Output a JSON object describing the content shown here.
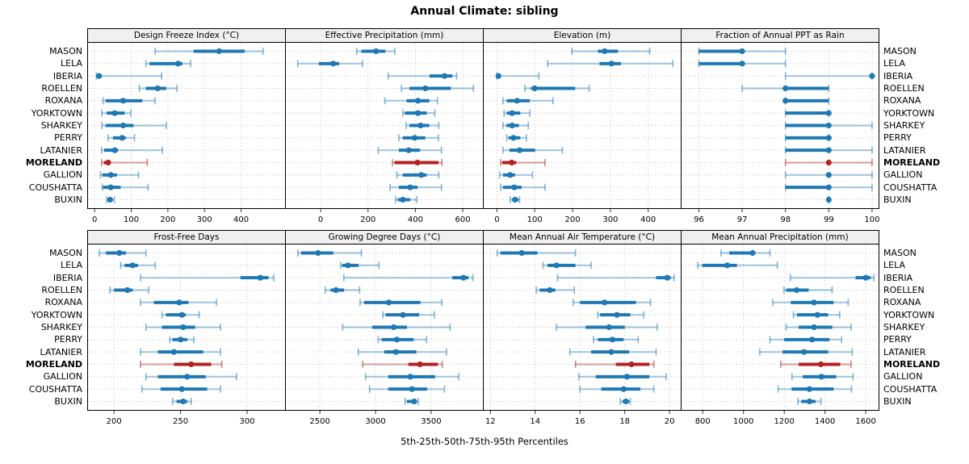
{
  "title": "Annual Climate: sibling",
  "footer": "5th-25th-50th-75th-95th Percentiles",
  "colors": {
    "series_blue": "#1F78B4",
    "highlight_red": "#B22222",
    "strip_bg": "#F0F0F0",
    "grid": "#C0C0C0",
    "border": "#000000",
    "tick": "#333333"
  },
  "chart_data": {
    "type": "dotplot-interval",
    "percentiles": [
      5,
      25,
      50,
      75,
      95
    ],
    "legend_note": "5th-25th-50th-75th-95th Percentiles",
    "rows": [
      "MASON",
      "LELA",
      "IBERIA",
      "ROELLEN",
      "ROXANA",
      "YORKTOWN",
      "SHARKEY",
      "PERRY",
      "LATANIER",
      "MORELAND",
      "GALLION",
      "COUSHATTA",
      "BUXIN"
    ],
    "highlight_row": "MORELAND",
    "grid_on": true,
    "panels": [
      {
        "title": "Design Freeze Index (°C)",
        "grid_row": 0,
        "grid_col": 0,
        "xlim": [
          -18,
          520
        ],
        "ticks": [
          0,
          100,
          200,
          300,
          400
        ],
        "series": [
          [
            165,
            270,
            340,
            410,
            460
          ],
          [
            140,
            150,
            228,
            240,
            262
          ],
          [
            5,
            8,
            12,
            20,
            183
          ],
          [
            122,
            140,
            172,
            196,
            225
          ],
          [
            23,
            30,
            78,
            130,
            165
          ],
          [
            20,
            33,
            55,
            82,
            99
          ],
          [
            20,
            30,
            78,
            106,
            196
          ],
          [
            37,
            50,
            75,
            85,
            109
          ],
          [
            19,
            26,
            55,
            64,
            185
          ],
          [
            19,
            25,
            37,
            44,
            144
          ],
          [
            16,
            21,
            44,
            61,
            120
          ],
          [
            21,
            23,
            44,
            71,
            146
          ],
          [
            33,
            35,
            42,
            50,
            54
          ]
        ]
      },
      {
        "title": "Effective Precipitation (mm)",
        "grid_row": 0,
        "grid_col": 1,
        "xlim": [
          -147,
          685
        ],
        "ticks": [
          0,
          200,
          400,
          600
        ],
        "series": [
          [
            152,
            172,
            234,
            273,
            313
          ],
          [
            -97,
            -8,
            53,
            78,
            177
          ],
          [
            285,
            460,
            523,
            556,
            574
          ],
          [
            341,
            375,
            442,
            550,
            645
          ],
          [
            271,
            363,
            411,
            459,
            493
          ],
          [
            347,
            355,
            411,
            448,
            482
          ],
          [
            361,
            375,
            422,
            459,
            499
          ],
          [
            330,
            347,
            397,
            442,
            497
          ],
          [
            243,
            330,
            372,
            420,
            510
          ],
          [
            303,
            312,
            409,
            498,
            512
          ],
          [
            322,
            347,
            425,
            448,
            499
          ],
          [
            293,
            330,
            378,
            409,
            510
          ],
          [
            316,
            325,
            347,
            378,
            406
          ]
        ]
      },
      {
        "title": "Elevation (m)",
        "grid_row": 0,
        "grid_col": 2,
        "xlim": [
          -35,
          486
        ],
        "ticks": [
          0,
          100,
          200,
          300,
          400
        ],
        "series": [
          [
            198,
            267,
            285,
            320,
            404
          ],
          [
            134,
            271,
            303,
            328,
            465
          ],
          [
            0,
            1,
            4,
            10,
            111
          ],
          [
            74,
            90,
            100,
            207,
            244
          ],
          [
            16,
            26,
            53,
            87,
            148
          ],
          [
            19,
            26,
            40,
            62,
            87
          ],
          [
            16,
            25,
            40,
            58,
            83
          ],
          [
            26,
            31,
            44,
            62,
            78
          ],
          [
            16,
            33,
            60,
            101,
            173
          ],
          [
            10,
            14,
            39,
            51,
            127
          ],
          [
            7,
            16,
            35,
            48,
            94
          ],
          [
            10,
            16,
            46,
            65,
            127
          ],
          [
            35,
            40,
            48,
            57,
            60
          ]
        ]
      },
      {
        "title": "Fraction of Annual PPT as Rain",
        "grid_row": 0,
        "grid_col": 3,
        "xlim": [
          95.6,
          100.15
        ],
        "ticks": [
          96,
          97,
          98,
          99,
          100
        ],
        "series": [
          [
            96,
            96,
            97,
            97,
            98
          ],
          [
            96,
            96,
            97,
            97,
            98
          ],
          [
            98,
            100,
            100,
            100,
            100
          ],
          [
            97,
            98,
            98,
            99,
            99
          ],
          [
            98,
            98,
            98,
            99,
            99
          ],
          [
            98,
            98,
            99,
            99,
            99
          ],
          [
            98,
            98,
            99,
            99,
            100
          ],
          [
            98,
            98,
            99,
            99,
            99
          ],
          [
            98,
            98,
            99,
            99,
            100
          ],
          [
            98,
            99,
            99,
            99,
            100
          ],
          [
            98,
            99,
            99,
            99,
            100
          ],
          [
            98,
            98,
            99,
            99,
            100
          ],
          [
            99,
            99,
            99,
            99,
            99
          ]
        ]
      },
      {
        "title": "Frost-Free Days",
        "grid_row": 1,
        "grid_col": 0,
        "xlim": [
          180.5,
          328.5
        ],
        "ticks": [
          200,
          250,
          300
        ],
        "series": [
          [
            189,
            194,
            204,
            209,
            224
          ],
          [
            205,
            208,
            214,
            218,
            231
          ],
          [
            220,
            295,
            310,
            316,
            320
          ],
          [
            197,
            200,
            210,
            214,
            226
          ],
          [
            220,
            230,
            249,
            256,
            277
          ],
          [
            236,
            239,
            251,
            254,
            264
          ],
          [
            224,
            236,
            252,
            261,
            280
          ],
          [
            242,
            244,
            250,
            255,
            260
          ],
          [
            220,
            233,
            245,
            267,
            280
          ],
          [
            220,
            245,
            258,
            273,
            281
          ],
          [
            224,
            233,
            255,
            269,
            292
          ],
          [
            221,
            235,
            251,
            270,
            280
          ],
          [
            244,
            247,
            252,
            255,
            258
          ]
        ]
      },
      {
        "title": "Growing Degree Days (°C)",
        "grid_row": 1,
        "grid_col": 1,
        "xlim": [
          2194,
          3965
        ],
        "ticks": [
          2500,
          3000,
          3500
        ],
        "series": [
          [
            2302,
            2331,
            2483,
            2620,
            2873
          ],
          [
            2686,
            2700,
            2753,
            2849,
            3030
          ],
          [
            2715,
            3690,
            3790,
            3835,
            3875
          ],
          [
            2548,
            2596,
            2645,
            2717,
            2857
          ],
          [
            2861,
            2898,
            3119,
            3404,
            3596
          ],
          [
            3066,
            3090,
            3247,
            3392,
            3529
          ],
          [
            2705,
            2970,
            3163,
            3283,
            3669
          ],
          [
            3025,
            3054,
            3192,
            3343,
            3459
          ],
          [
            2845,
            3078,
            3182,
            3367,
            3637
          ],
          [
            2885,
            3295,
            3400,
            3560,
            3600
          ],
          [
            2910,
            3114,
            3312,
            3536,
            3748
          ],
          [
            2946,
            3114,
            3327,
            3464,
            3620
          ],
          [
            3266,
            3283,
            3348,
            3367,
            3384
          ]
        ]
      },
      {
        "title": "Mean Annual Air Temperature (°C)",
        "grid_row": 1,
        "grid_col": 2,
        "xlim": [
          11.7,
          20.5
        ],
        "ticks": [
          12,
          14,
          16,
          18,
          20
        ],
        "series": [
          [
            12.3,
            12.45,
            13.4,
            14.1,
            15.8
          ],
          [
            14.35,
            14.55,
            14.95,
            15.8,
            16.5
          ],
          [
            15.0,
            19.4,
            19.9,
            20.05,
            20.2
          ],
          [
            14.05,
            14.2,
            14.65,
            14.9,
            15.75
          ],
          [
            15.7,
            16.0,
            17.1,
            18.5,
            19.15
          ],
          [
            16.8,
            16.9,
            17.65,
            18.25,
            18.85
          ],
          [
            14.95,
            16.25,
            17.3,
            18.0,
            19.45
          ],
          [
            16.6,
            16.8,
            17.45,
            17.95,
            18.6
          ],
          [
            15.55,
            16.5,
            17.4,
            18.2,
            19.4
          ],
          [
            15.8,
            17.6,
            18.3,
            19.1,
            19.3
          ],
          [
            15.95,
            16.7,
            18.1,
            19.1,
            19.85
          ],
          [
            16.0,
            16.95,
            17.95,
            18.7,
            19.3
          ],
          [
            17.8,
            17.9,
            18.05,
            18.2,
            18.25
          ]
        ]
      },
      {
        "title": "Mean Annual Precipitation (mm)",
        "grid_row": 1,
        "grid_col": 3,
        "xlim": [
          696,
          1663
        ],
        "ticks": [
          800,
          1000,
          1200,
          1400,
          1600
        ],
        "series": [
          [
            890,
            930,
            1045,
            1057,
            1130
          ],
          [
            775,
            798,
            920,
            968,
            1166
          ],
          [
            1230,
            1550,
            1600,
            1625,
            1640
          ],
          [
            1199,
            1209,
            1261,
            1320,
            1435
          ],
          [
            1143,
            1232,
            1346,
            1442,
            1514
          ],
          [
            1245,
            1262,
            1363,
            1416,
            1472
          ],
          [
            1209,
            1271,
            1347,
            1436,
            1528
          ],
          [
            1130,
            1200,
            1337,
            1422,
            1482
          ],
          [
            1080,
            1192,
            1297,
            1416,
            1534
          ],
          [
            1183,
            1271,
            1380,
            1475,
            1528
          ],
          [
            1238,
            1291,
            1383,
            1455,
            1538
          ],
          [
            1170,
            1236,
            1324,
            1442,
            1530
          ],
          [
            1267,
            1284,
            1324,
            1354,
            1380
          ]
        ]
      }
    ]
  }
}
